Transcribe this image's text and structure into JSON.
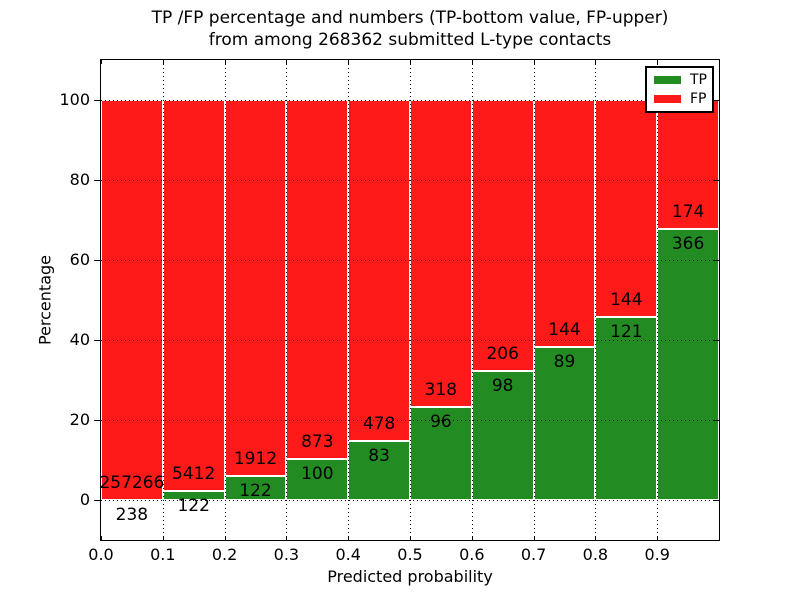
{
  "chart_data": {
    "type": "bar",
    "subtype": "stacked-percentage-histogram",
    "title": "TP /FP percentage and numbers (TP-bottom value, FP-upper) from among 268362 submitted L-type contacts",
    "title_lines": [
      "TP /FP percentage and numbers (TP-bottom value, FP-upper)",
      "from among 268362 submitted L-type contacts"
    ],
    "xlabel": "Predicted probability",
    "ylabel": "Percentage",
    "total_submitted": 268362,
    "contact_type": "L-type",
    "xlim": [
      0.0,
      1.0
    ],
    "ylim": [
      -10,
      110
    ],
    "bin_width": 0.1,
    "x_ticks": [
      "0.0",
      "0.1",
      "0.2",
      "0.3",
      "0.4",
      "0.5",
      "0.6",
      "0.7",
      "0.8",
      "0.9"
    ],
    "y_ticks": [
      "0",
      "20",
      "40",
      "60",
      "80",
      "100"
    ],
    "grid": "dotted",
    "bar_edge_color": "#ffffff",
    "legend_position": "upper right",
    "categories": [
      "0.0-0.1",
      "0.1-0.2",
      "0.2-0.3",
      "0.3-0.4",
      "0.4-0.5",
      "0.5-0.6",
      "0.6-0.7",
      "0.7-0.8",
      "0.8-0.9",
      "0.9-1.0"
    ],
    "series": [
      {
        "name": "TP",
        "color": "#228B22",
        "counts": [
          238,
          122,
          122,
          100,
          83,
          96,
          98,
          89,
          121,
          366
        ]
      },
      {
        "name": "FP",
        "color": "#FF1A1A",
        "counts": [
          257266,
          5412,
          1912,
          873,
          478,
          318,
          206,
          144,
          144,
          174
        ]
      }
    ],
    "tp_percentages": [
      0.09,
      2.2,
      6.0,
      10.28,
      14.8,
      23.19,
      32.24,
      38.2,
      45.66,
      67.78
    ]
  }
}
